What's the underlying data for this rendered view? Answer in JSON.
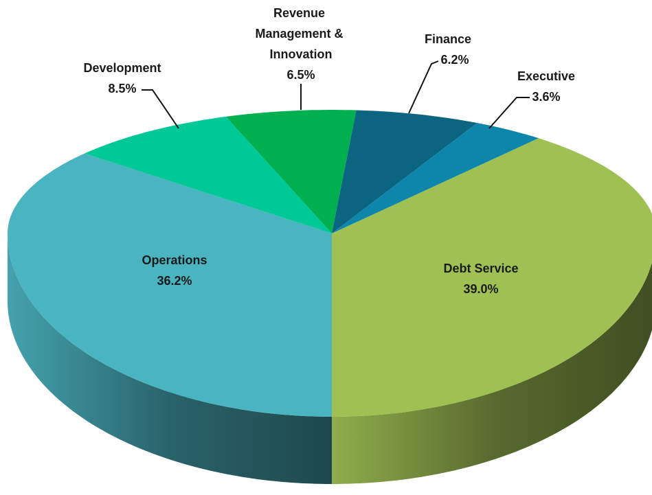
{
  "chart_data": {
    "type": "pie",
    "categories": [
      "Debt Service",
      "Operations",
      "Development",
      "Revenue Management & Innovation",
      "Finance",
      "Executive"
    ],
    "values": [
      39.0,
      36.2,
      8.5,
      6.5,
      6.2,
      3.6
    ],
    "value_labels": [
      "39.0%",
      "36.2%",
      "8.5%",
      "6.5%",
      "6.2%",
      "3.6%"
    ],
    "colors": [
      "#9fc154",
      "#4bb4c1",
      "#00c896",
      "#00b050",
      "#0b6480",
      "#0e86ac"
    ]
  }
}
